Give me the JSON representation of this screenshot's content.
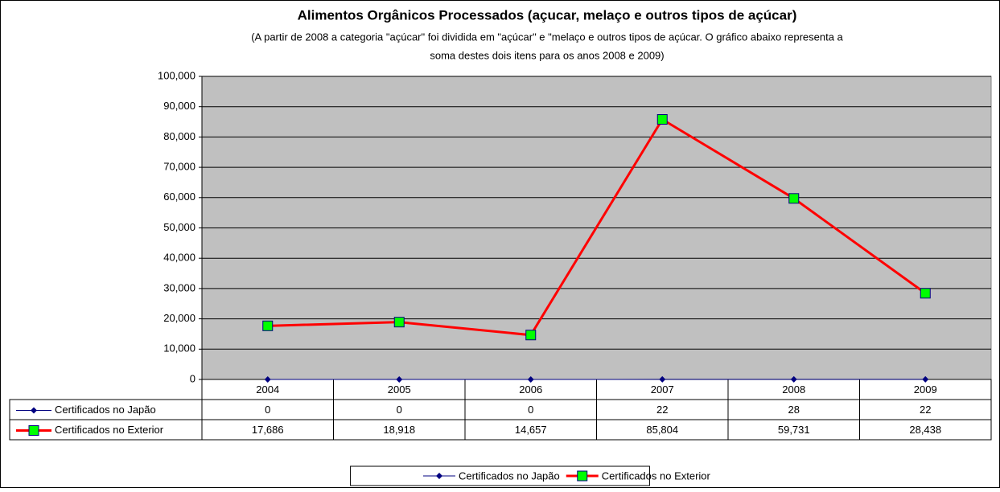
{
  "chart_data": {
    "type": "line",
    "title": "Alimentos Orgânicos Processados (açucar, melaço e outros tipos de açúcar)",
    "subtitle": [
      "(A partir de 2008 a categoria \"açúcar\" foi dividida em \"açúcar\" e \"melaço e outros tipos de açúcar. O gráfico abaixo representa a",
      "soma destes dois itens para os anos 2008 e 2009)"
    ],
    "categories": [
      "2004",
      "2005",
      "2006",
      "2007",
      "2008",
      "2009"
    ],
    "series": [
      {
        "name": "Certificados no Japão",
        "color": "#000080",
        "marker": "diamond",
        "values": [
          0,
          0,
          0,
          22,
          28,
          22
        ]
      },
      {
        "name": "Certificados no Exterior",
        "color": "#ff0000",
        "marker_color": "#00ff00",
        "marker": "square",
        "values": [
          17686,
          18918,
          14657,
          85804,
          59731,
          28438
        ],
        "value_labels": [
          "17,686",
          "18,918",
          "14,657",
          "85,804",
          "59,731",
          "28,438"
        ]
      }
    ],
    "ylim": [
      0,
      100000
    ],
    "yticks": [
      0,
      {
        "value": 10000,
        "label": "10,000"
      },
      {
        "value": 20000,
        "label": "20,000"
      },
      {
        "value": 30000,
        "label": "30,000"
      },
      {
        "value": 40000,
        "label": "40,000"
      },
      {
        "value": 50000,
        "label": "50,000"
      },
      {
        "value": 60000,
        "label": "60,000"
      },
      {
        "value": 70000,
        "label": "70,000"
      },
      {
        "value": 80000,
        "label": "80,000"
      },
      {
        "value": 90000,
        "label": "90,000"
      },
      {
        "value": 100000,
        "label": "100,000"
      }
    ],
    "grid": true,
    "plot_background": "#c0c0c0",
    "legend": "bottom",
    "data_table": true
  }
}
